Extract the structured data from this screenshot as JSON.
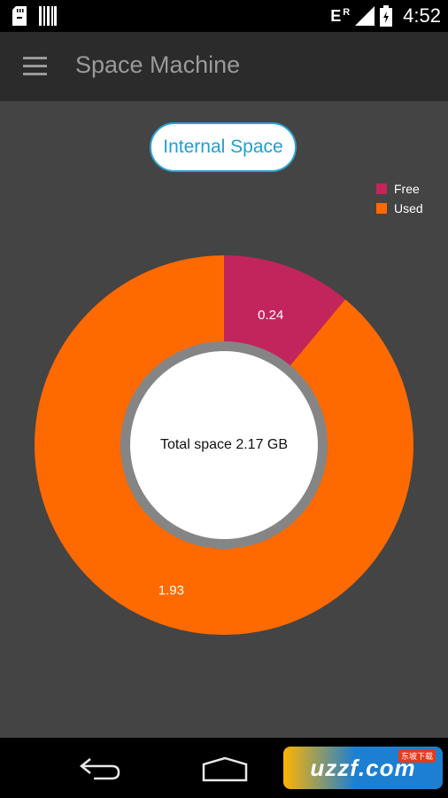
{
  "status_bar": {
    "time": "4:52",
    "network_type": "E",
    "roaming_indicator": "R",
    "icons": [
      "sd-card-icon",
      "barcode-icon",
      "signal-icon",
      "battery-icon"
    ]
  },
  "app_bar": {
    "title": "Space Machine",
    "menu_icon": "hamburger-menu-icon"
  },
  "storage_selector": {
    "label": "Internal Space"
  },
  "legend": {
    "items": [
      {
        "label": "Free",
        "color": "#c2255c"
      },
      {
        "label": "Used",
        "color": "#ff6a00"
      }
    ]
  },
  "chart_data": {
    "type": "pie",
    "variant": "donut",
    "center_label": "Total space 2.17 GB",
    "slices": [
      {
        "label": "Free",
        "value": 0.24,
        "color": "#c2255c"
      },
      {
        "label": "Used",
        "value": 1.93,
        "color": "#ff6a00"
      }
    ],
    "legend_placement": "top-right"
  },
  "nav_bar": {
    "icons": [
      "back-icon",
      "home-icon"
    ]
  },
  "watermark": {
    "text": "uzzf.com",
    "subtext": "东坡下载"
  }
}
